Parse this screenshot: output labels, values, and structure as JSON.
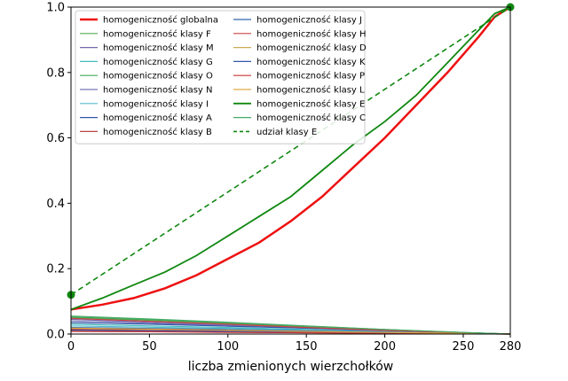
{
  "chart_data": {
    "type": "line",
    "title": "",
    "xlabel": "liczba zmienionych wierzchołków",
    "ylabel": "",
    "xlim": [
      0,
      280
    ],
    "ylim": [
      0,
      1.0
    ],
    "x_ticks": [
      0,
      50,
      100,
      150,
      200,
      250,
      280
    ],
    "x_tick_labels": [
      "0",
      "50",
      "100",
      "150",
      "200",
      "250",
      "280"
    ],
    "y_ticks": [
      0,
      0.2,
      0.4,
      0.6,
      0.8,
      1.0
    ],
    "y_tick_labels": [
      "0.0",
      "0.2",
      "0.4",
      "0.6",
      "0.8",
      "1.0"
    ],
    "grid": false,
    "legend_position": "top-left",
    "series": [
      {
        "name": "homogeniczność globalna",
        "color": "#ee1111",
        "width": 2.5,
        "dash": "",
        "x": [
          0,
          20,
          40,
          60,
          80,
          100,
          120,
          140,
          160,
          180,
          200,
          220,
          240,
          260,
          270,
          280
        ],
        "y": [
          0.075,
          0.09,
          0.11,
          0.14,
          0.18,
          0.23,
          0.28,
          0.345,
          0.42,
          0.51,
          0.6,
          0.7,
          0.8,
          0.91,
          0.97,
          1.0
        ]
      },
      {
        "name": "homogeniczność klasy F",
        "color": "#55aa55",
        "width": 1.2,
        "dash": "",
        "x": [
          0,
          50,
          100,
          150,
          200,
          250,
          280
        ],
        "y": [
          0.05,
          0.042,
          0.032,
          0.022,
          0.012,
          0.004,
          0.0
        ]
      },
      {
        "name": "homogeniczność klasy M",
        "color": "#7766aa",
        "width": 1.2,
        "dash": "",
        "x": [
          0,
          50,
          100,
          150,
          200,
          250,
          280
        ],
        "y": [
          0.045,
          0.036,
          0.028,
          0.019,
          0.01,
          0.003,
          0.0
        ]
      },
      {
        "name": "homogeniczność klasy G",
        "color": "#44bbbb",
        "width": 1.2,
        "dash": "",
        "x": [
          0,
          50,
          100,
          150,
          200,
          250,
          280
        ],
        "y": [
          0.03,
          0.025,
          0.02,
          0.014,
          0.008,
          0.003,
          0.0
        ]
      },
      {
        "name": "homogeniczność klasy O",
        "color": "#44aa55",
        "width": 1.2,
        "dash": "",
        "x": [
          0,
          50,
          100,
          150,
          200,
          250,
          280
        ],
        "y": [
          0.052,
          0.044,
          0.034,
          0.024,
          0.014,
          0.005,
          0.0
        ]
      },
      {
        "name": "homogeniczność klasy N",
        "color": "#7777bb",
        "width": 1.2,
        "dash": "",
        "x": [
          0,
          50,
          100,
          150,
          200,
          250,
          280
        ],
        "y": [
          0.04,
          0.033,
          0.026,
          0.018,
          0.01,
          0.003,
          0.0
        ]
      },
      {
        "name": "homogeniczność klasy I",
        "color": "#55bbcc",
        "width": 1.2,
        "dash": "",
        "x": [
          0,
          50,
          100,
          150,
          200,
          250,
          280
        ],
        "y": [
          0.025,
          0.021,
          0.017,
          0.012,
          0.007,
          0.002,
          0.0
        ]
      },
      {
        "name": "homogeniczność klasy A",
        "color": "#3355aa",
        "width": 1.2,
        "dash": "",
        "x": [
          0,
          50,
          100,
          150,
          200,
          250,
          280
        ],
        "y": [
          0.035,
          0.03,
          0.024,
          0.018,
          0.011,
          0.004,
          0.0
        ]
      },
      {
        "name": "homogeniczność klasy B",
        "color": "#bb4444",
        "width": 1.2,
        "dash": "",
        "x": [
          0,
          50,
          100,
          150,
          200,
          250,
          280
        ],
        "y": [
          0.015,
          0.013,
          0.01,
          0.007,
          0.004,
          0.001,
          0.0
        ]
      },
      {
        "name": "homogeniczność klasy J",
        "color": "#3366aa",
        "width": 1.2,
        "dash": "",
        "x": [
          0,
          50,
          100,
          150,
          200,
          250,
          280
        ],
        "y": [
          0.02,
          0.017,
          0.014,
          0.01,
          0.006,
          0.002,
          0.0
        ]
      },
      {
        "name": "homogeniczność klasy H",
        "color": "#cc4444",
        "width": 1.2,
        "dash": "",
        "x": [
          0,
          50,
          100,
          150,
          200,
          250,
          280
        ],
        "y": [
          0.048,
          0.039,
          0.03,
          0.02,
          0.011,
          0.004,
          0.0
        ]
      },
      {
        "name": "homogeniczność klasy D",
        "color": "#ccaa55",
        "width": 1.2,
        "dash": "",
        "x": [
          0,
          50,
          100,
          150,
          200,
          250,
          280
        ],
        "y": [
          0.01,
          0.008,
          0.006,
          0.004,
          0.002,
          0.001,
          0.0
        ]
      },
      {
        "name": "homogeniczność klasy K",
        "color": "#3355aa",
        "width": 1.2,
        "dash": "",
        "x": [
          0,
          50,
          100,
          150,
          200,
          250,
          280
        ],
        "y": [
          0.012,
          0.01,
          0.008,
          0.006,
          0.003,
          0.001,
          0.0
        ]
      },
      {
        "name": "homogeniczność klasy P",
        "color": "#cc3333",
        "width": 1.2,
        "dash": "",
        "x": [
          0,
          50,
          100,
          150,
          200,
          250,
          280
        ],
        "y": [
          0.008,
          0.007,
          0.005,
          0.004,
          0.002,
          0.001,
          0.0
        ]
      },
      {
        "name": "homogeniczność klasy L",
        "color": "#ddaa44",
        "width": 1.2,
        "dash": "",
        "x": [
          0,
          50,
          100,
          150,
          200,
          250,
          280
        ],
        "y": [
          0.018,
          0.015,
          0.012,
          0.008,
          0.005,
          0.002,
          0.0
        ]
      },
      {
        "name": "homogeniczność klasy E",
        "color": "#118811",
        "width": 1.8,
        "dash": "",
        "x": [
          0,
          20,
          40,
          60,
          80,
          100,
          120,
          140,
          160,
          180,
          200,
          220,
          240,
          260,
          270,
          280
        ],
        "y": [
          0.075,
          0.11,
          0.15,
          0.19,
          0.24,
          0.3,
          0.36,
          0.42,
          0.5,
          0.58,
          0.65,
          0.73,
          0.83,
          0.93,
          0.98,
          1.0
        ]
      },
      {
        "name": "homogeniczność klasy C",
        "color": "#44aa66",
        "width": 1.2,
        "dash": "",
        "x": [
          0,
          50,
          100,
          150,
          200,
          250,
          280
        ],
        "y": [
          0.055,
          0.046,
          0.036,
          0.025,
          0.014,
          0.005,
          0.0
        ]
      },
      {
        "name": "udział klasy E",
        "color": "#118811",
        "width": 1.6,
        "dash": "6,4",
        "x": [
          0,
          280
        ],
        "y": [
          0.12,
          1.0
        ]
      }
    ],
    "markers": [
      {
        "x": 0,
        "y": 0.12,
        "color": "#118811"
      },
      {
        "x": 280,
        "y": 1.0,
        "color": "#118811"
      }
    ]
  }
}
